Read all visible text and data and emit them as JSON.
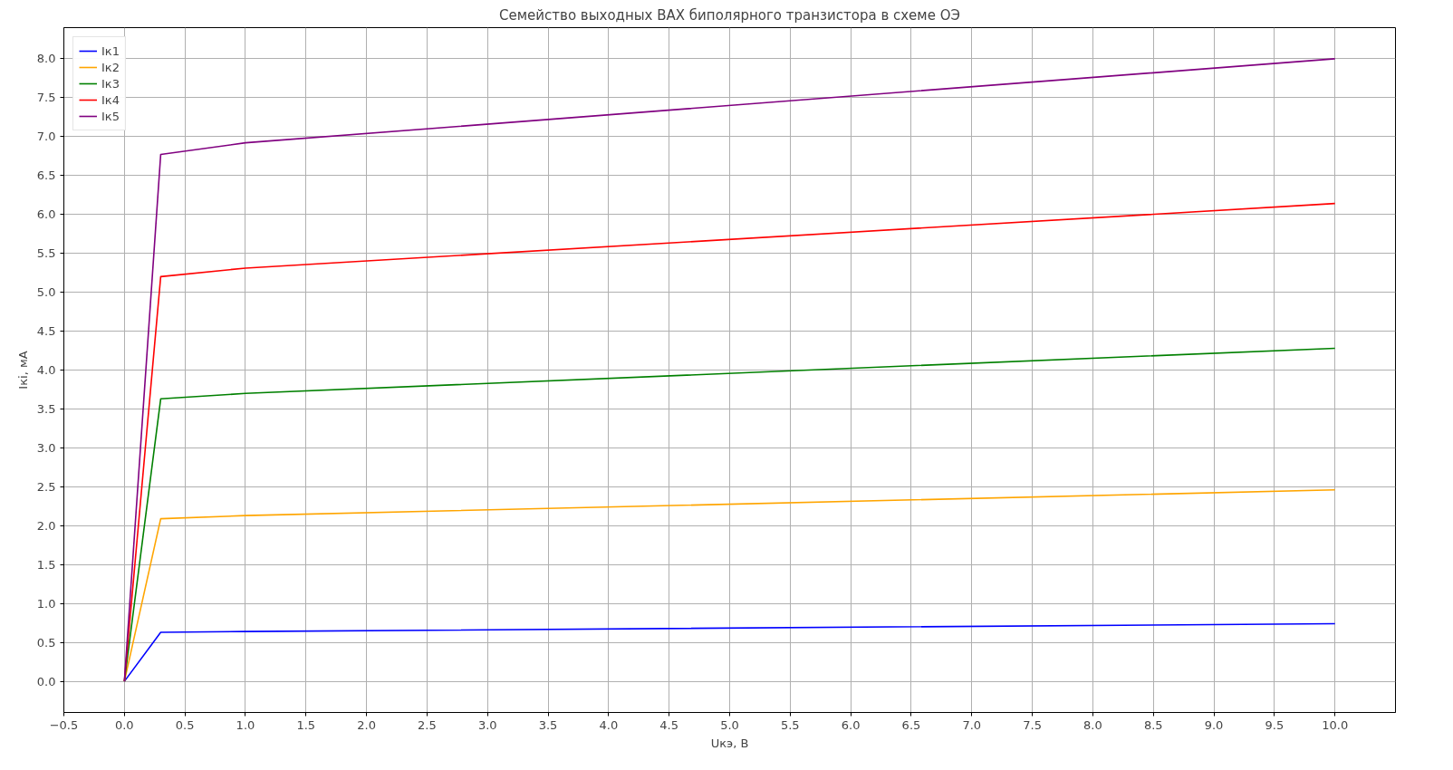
{
  "chart_data": {
    "type": "line",
    "title": "Семейство выходных ВАХ биполярного транзистора в схеме ОЭ",
    "xlabel": "Uкэ, В",
    "ylabel": "Iкi, мА",
    "x": [
      0,
      0.3,
      1,
      10
    ],
    "series": [
      {
        "name": "Iк1",
        "color": "#0000ff",
        "values": [
          0,
          0.63,
          0.64,
          0.74
        ]
      },
      {
        "name": "Iк2",
        "color": "#ffa500",
        "values": [
          0,
          2.09,
          2.13,
          2.46
        ]
      },
      {
        "name": "Iк3",
        "color": "#008000",
        "values": [
          0,
          3.63,
          3.7,
          4.28
        ]
      },
      {
        "name": "Iк4",
        "color": "#ff0000",
        "values": [
          0,
          5.2,
          5.31,
          6.14
        ]
      },
      {
        "name": "Iк5",
        "color": "#800080",
        "values": [
          0,
          6.77,
          6.92,
          8.0
        ]
      }
    ],
    "xlim": [
      -0.5,
      10.5
    ],
    "ylim": [
      -0.4,
      8.4
    ],
    "xticks": [
      {
        "value": -0.5,
        "label": "−0.5"
      },
      {
        "value": 0,
        "label": "0.0"
      },
      0.5,
      {
        "value": 1,
        "label": "1.0"
      },
      1.5,
      {
        "value": 2,
        "label": "2.0"
      },
      2.5,
      {
        "value": 3,
        "label": "3.0"
      },
      3.5,
      {
        "value": 4,
        "label": "4.0"
      },
      4.5,
      {
        "value": 5,
        "label": "5.0"
      },
      5.5,
      {
        "value": 6,
        "label": "6.0"
      },
      6.5,
      {
        "value": 7,
        "label": "7.0"
      },
      7.5,
      {
        "value": 8,
        "label": "8.0"
      },
      8.5,
      {
        "value": 9,
        "label": "9.0"
      },
      9.5,
      {
        "value": 10,
        "label": "10.0"
      }
    ],
    "yticks": [
      {
        "value": 0,
        "label": "0.0"
      },
      0.5,
      {
        "value": 1,
        "label": "1.0"
      },
      1.5,
      {
        "value": 2,
        "label": "2.0"
      },
      2.5,
      {
        "value": 3,
        "label": "3.0"
      },
      3.5,
      {
        "value": 4,
        "label": "4.0"
      },
      4.5,
      {
        "value": 5,
        "label": "5.0"
      },
      5.5,
      {
        "value": 6,
        "label": "6.0"
      },
      6.5,
      {
        "value": 7,
        "label": "7.0"
      },
      7.5,
      {
        "value": 8,
        "label": "8.0"
      }
    ],
    "grid": true,
    "legend": "top left"
  }
}
